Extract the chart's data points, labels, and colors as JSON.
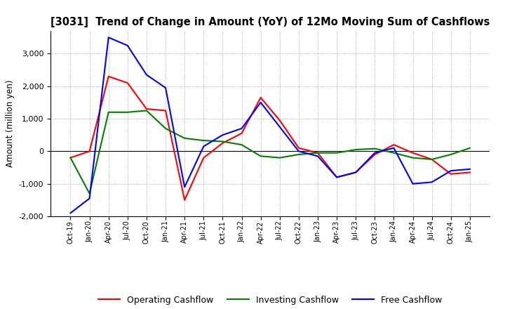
{
  "title": "[3031]  Trend of Change in Amount (YoY) of 12Mo Moving Sum of Cashflows",
  "ylabel": "Amount (million yen)",
  "ylim": [
    -2000,
    3700
  ],
  "yticks": [
    -2000,
    -1000,
    0,
    1000,
    2000,
    3000
  ],
  "x_labels": [
    "Oct-19",
    "Jan-20",
    "Apr-20",
    "Jul-20",
    "Oct-20",
    "Jan-21",
    "Apr-21",
    "Jul-21",
    "Oct-21",
    "Jan-22",
    "Apr-22",
    "Jul-22",
    "Oct-22",
    "Jan-23",
    "Apr-23",
    "Jul-23",
    "Oct-23",
    "Jan-24",
    "Apr-24",
    "Jul-24",
    "Oct-24",
    "Jan-25"
  ],
  "operating": [
    -200,
    0,
    2300,
    2100,
    1300,
    1250,
    -1500,
    -200,
    250,
    550,
    1650,
    950,
    100,
    -50,
    -800,
    -650,
    -100,
    200,
    -50,
    -250,
    -700,
    -650
  ],
  "investing": [
    -200,
    -1300,
    1200,
    1200,
    1250,
    700,
    400,
    330,
    300,
    200,
    -150,
    -200,
    -100,
    -50,
    -50,
    50,
    80,
    -50,
    -200,
    -250,
    -100,
    100
  ],
  "free": [
    -1900,
    -1450,
    3500,
    3250,
    2350,
    1950,
    -1100,
    150,
    500,
    700,
    1500,
    750,
    0,
    -150,
    -800,
    -650,
    -50,
    100,
    -1000,
    -950,
    -600,
    -550
  ],
  "operating_color": "#ff0000",
  "investing_color": "#008000",
  "free_color": "#0000ff",
  "line_width": 1.5,
  "bg_color": "#ffffff",
  "grid_color": "#999999"
}
